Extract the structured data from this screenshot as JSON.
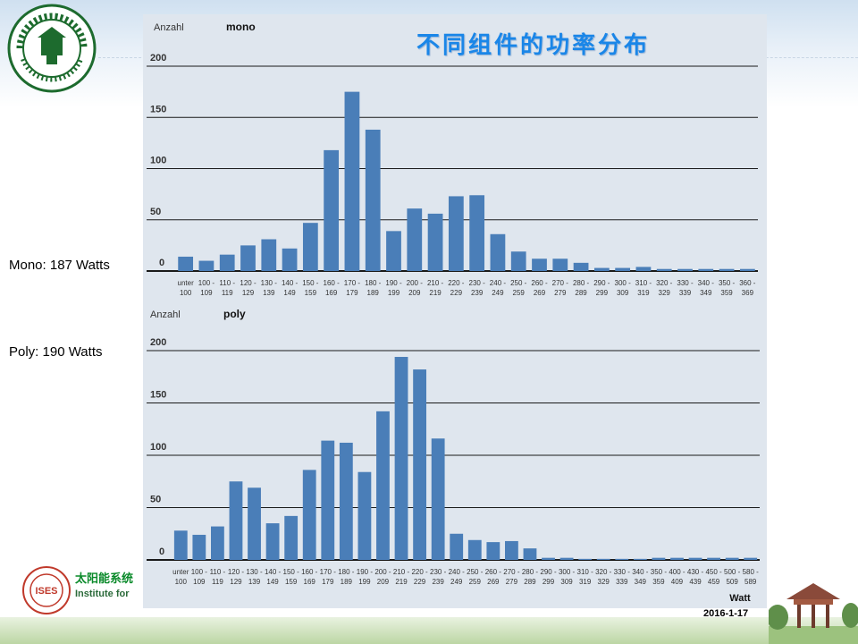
{
  "slide": {
    "title": "不同组件的功率分布",
    "mono_label": "Mono: 187 Watts",
    "poly_label": "Poly: 190 Watts",
    "date": "2016-1-17",
    "footer_cn": "太阳能系统",
    "footer_en": "Institute for",
    "footer_logo_text": "ISES",
    "colors": {
      "bar": "#4a7eb8",
      "title": "#1a86e8",
      "panel": "#dfe6ee"
    }
  },
  "chart_data": [
    {
      "type": "bar",
      "title": "mono",
      "ylabel": "Anzahl",
      "xlabel": "",
      "ylim": [
        0,
        200
      ],
      "yticks": [
        0,
        50,
        100,
        150,
        200
      ],
      "grid": true,
      "categories": [
        [
          "unter",
          "100"
        ],
        [
          "100 -",
          "109"
        ],
        [
          "110 -",
          "119"
        ],
        [
          "120 -",
          "129"
        ],
        [
          "130 -",
          "139"
        ],
        [
          "140 -",
          "149"
        ],
        [
          "150 -",
          "159"
        ],
        [
          "160 -",
          "169"
        ],
        [
          "170 -",
          "179"
        ],
        [
          "180 -",
          "189"
        ],
        [
          "190 -",
          "199"
        ],
        [
          "200 -",
          "209"
        ],
        [
          "210 -",
          "219"
        ],
        [
          "220 -",
          "229"
        ],
        [
          "230 -",
          "239"
        ],
        [
          "240 -",
          "249"
        ],
        [
          "250 -",
          "259"
        ],
        [
          "260 -",
          "269"
        ],
        [
          "270 -",
          "279"
        ],
        [
          "280 -",
          "289"
        ],
        [
          "290 -",
          "299"
        ],
        [
          "300 -",
          "309"
        ],
        [
          "310 -",
          "319"
        ],
        [
          "320 -",
          "329"
        ],
        [
          "330 -",
          "339"
        ],
        [
          "340 -",
          "349"
        ],
        [
          "350 -",
          "359"
        ],
        [
          "360 -",
          "369"
        ]
      ],
      "values": [
        14,
        10,
        16,
        25,
        31,
        22,
        47,
        118,
        175,
        138,
        39,
        61,
        56,
        73,
        74,
        36,
        19,
        12,
        12,
        8,
        3,
        3,
        4,
        2,
        2,
        2,
        2,
        2
      ]
    },
    {
      "type": "bar",
      "title": "poly",
      "ylabel": "Anzahl",
      "xlabel": "Watt",
      "ylim": [
        0,
        200
      ],
      "yticks": [
        0,
        50,
        100,
        150,
        200
      ],
      "grid": true,
      "categories": [
        [
          "unter",
          "100"
        ],
        [
          "100 -",
          "109"
        ],
        [
          "110 -",
          "119"
        ],
        [
          "120 -",
          "129"
        ],
        [
          "130 -",
          "139"
        ],
        [
          "140 -",
          "149"
        ],
        [
          "150 -",
          "159"
        ],
        [
          "160 -",
          "169"
        ],
        [
          "170 -",
          "179"
        ],
        [
          "180 -",
          "189"
        ],
        [
          "190 -",
          "199"
        ],
        [
          "200 -",
          "209"
        ],
        [
          "210 -",
          "219"
        ],
        [
          "220 -",
          "229"
        ],
        [
          "230 -",
          "239"
        ],
        [
          "240 -",
          "249"
        ],
        [
          "250 -",
          "259"
        ],
        [
          "260 -",
          "269"
        ],
        [
          "270 -",
          "279"
        ],
        [
          "280 -",
          "289"
        ],
        [
          "290 -",
          "299"
        ],
        [
          "300 -",
          "309"
        ],
        [
          "310 -",
          "319"
        ],
        [
          "320 -",
          "329"
        ],
        [
          "330 -",
          "339"
        ],
        [
          "340 -",
          "349"
        ],
        [
          "350 -",
          "359"
        ],
        [
          "400 -",
          "409"
        ],
        [
          "430 -",
          "439"
        ],
        [
          "450 -",
          "459"
        ],
        [
          "500 -",
          "509"
        ],
        [
          "580 -",
          "589"
        ]
      ],
      "values": [
        28,
        24,
        32,
        75,
        69,
        35,
        42,
        86,
        114,
        112,
        84,
        142,
        194,
        182,
        116,
        25,
        19,
        17,
        18,
        11,
        2,
        2,
        1,
        1,
        1,
        1,
        2,
        2,
        2,
        2,
        2,
        2
      ]
    }
  ]
}
